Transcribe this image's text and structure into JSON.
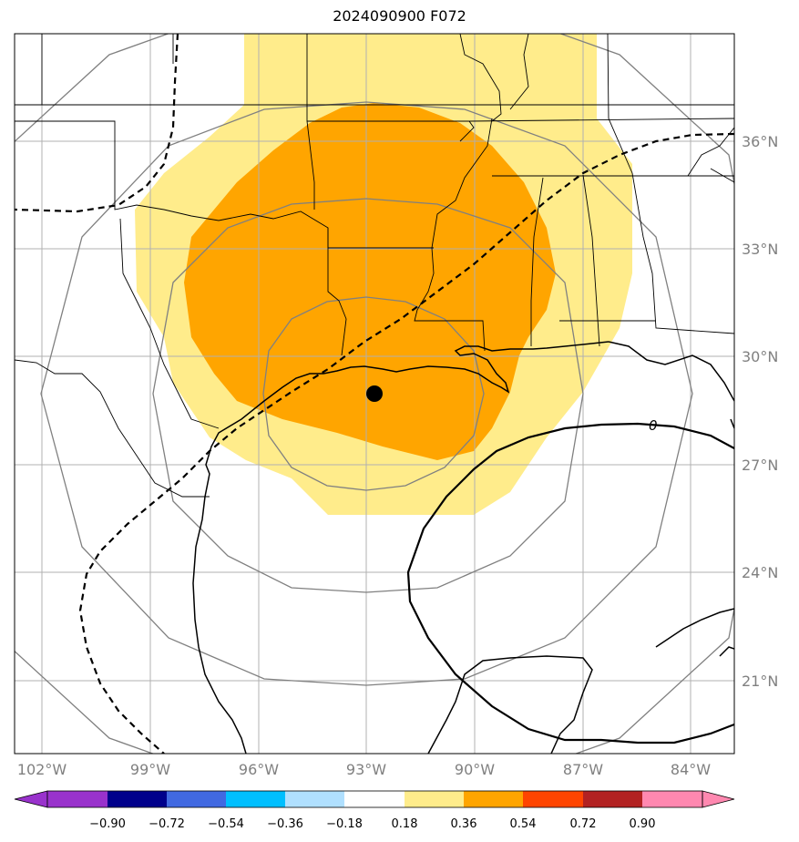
{
  "title": "2024090900 F072",
  "map": {
    "lon_labels": [
      "102°W",
      "99°W",
      "96°W",
      "93°W",
      "90°W",
      "87°W",
      "84°W"
    ],
    "lat_labels": [
      "36°N",
      "33°N",
      "30°N",
      "27°N",
      "24°N",
      "21°N"
    ],
    "contour_label": "0",
    "center_marker": "storm-center-dot",
    "colors": {
      "light_yellow": "#ffec8b",
      "orange": "#ffa500",
      "grid": "#b0b0b0",
      "range_rings": "#808080"
    }
  },
  "colorbar": {
    "ticks": [
      "−0.90",
      "−0.72",
      "−0.54",
      "−0.36",
      "−0.18",
      "0.18",
      "0.36",
      "0.54",
      "0.72",
      "0.90"
    ],
    "colors": [
      "#9932cc",
      "#9932cc",
      "#00008b",
      "#4169e1",
      "#00bfff",
      "#b0e0ff",
      "#ffffff",
      "#ffec8b",
      "#ffa500",
      "#ff4500",
      "#b22222",
      "#ff88b0"
    ]
  }
}
